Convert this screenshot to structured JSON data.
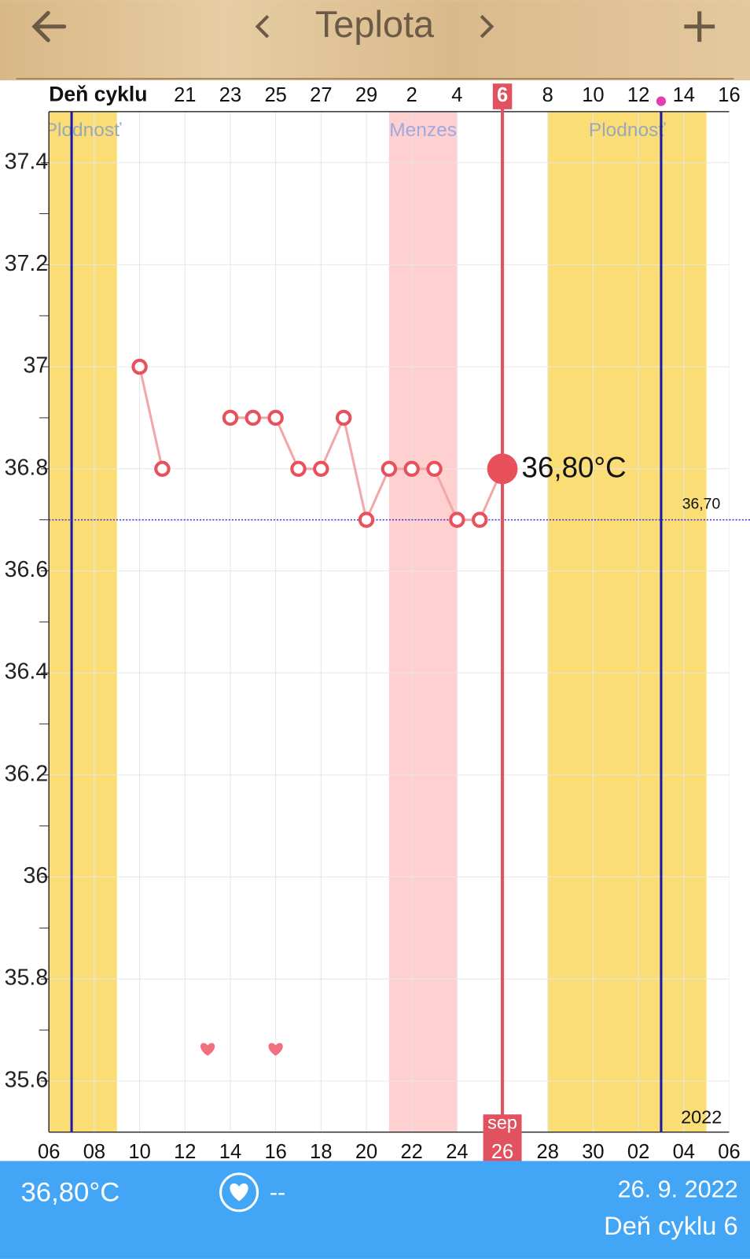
{
  "header": {
    "title": "Teplota"
  },
  "chart_data": {
    "type": "line",
    "x_label_top": "Deň cyklu",
    "categories": [
      "06",
      null,
      "08",
      null,
      "10",
      null,
      "12",
      null,
      "14",
      null,
      "16",
      null,
      "18",
      null,
      "20",
      null,
      "22",
      null,
      "24",
      null,
      "26",
      null,
      "28",
      null,
      "30",
      null,
      "02",
      null,
      "04",
      null,
      "06"
    ],
    "cycle_days": [
      null,
      null,
      null,
      null,
      null,
      null,
      "21",
      null,
      "23",
      null,
      "25",
      null,
      "27",
      null,
      "29",
      null,
      "2",
      null,
      "4",
      null,
      "6",
      null,
      "8",
      null,
      "10",
      null,
      "12",
      null,
      "14",
      null,
      "16"
    ],
    "values": [
      null,
      null,
      null,
      null,
      37,
      36.8,
      null,
      null,
      36.9,
      36.9,
      36.9,
      36.8,
      36.8,
      36.9,
      36.7,
      36.8,
      36.8,
      36.8,
      36.7,
      36.7,
      36.8,
      null,
      null,
      null,
      null,
      null,
      null,
      null,
      null,
      null,
      null
    ],
    "value_labels": [
      null,
      null,
      null,
      null,
      null,
      null,
      null,
      null,
      null,
      null,
      null,
      null,
      null,
      null,
      null,
      null,
      null,
      null,
      null,
      null,
      "36,80°C",
      null,
      null,
      null,
      null,
      null,
      null,
      null,
      null,
      null,
      null
    ],
    "color": "#e8505b",
    "selected": {
      "index": 20,
      "month": "sep"
    },
    "ylim": [
      35.5,
      37.5
    ],
    "yticks": [
      35.6,
      35.8,
      36,
      36.2,
      36.4,
      36.6,
      36.8,
      37,
      37.2,
      37.4
    ],
    "yticks_minor": [
      35.7,
      35.9,
      36.1,
      36.3,
      36.5,
      36.7,
      36.9,
      37.1,
      37.3
    ],
    "grid": true,
    "reference": {
      "value": 36.7,
      "label": "36,70",
      "color": "#3a2fd0"
    },
    "bands": [
      {
        "label": "Plodnosť",
        "start": 0,
        "end": 3,
        "color": "#fadd75"
      },
      {
        "label": "Menzes",
        "start": 15,
        "end": 18,
        "color": "#ffd0d0"
      },
      {
        "label": "Plodnosť",
        "start": 22,
        "end": 29,
        "color": "#fadd75"
      }
    ],
    "markers": [
      1,
      27
    ],
    "ovulation": 27,
    "intercourse": [
      7,
      10
    ],
    "year": "2022"
  },
  "footer": {
    "temperature": "36,80°C",
    "note": "--",
    "date": "26. 9. 2022",
    "cycle_day": "Deň cyklu 6"
  }
}
